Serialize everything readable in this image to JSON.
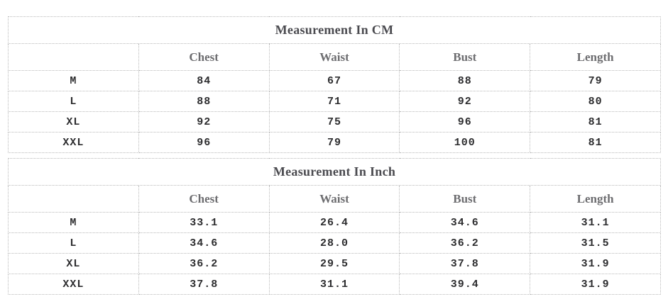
{
  "colors": {
    "background": "#ffffff",
    "border": "#b9b9b9",
    "title_text": "#4a4a4f",
    "header_text": "#6d6d70",
    "data_text": "#2d2d2f"
  },
  "tables": [
    {
      "title": "Measurement In CM",
      "columns": [
        "",
        "Chest",
        "Waist",
        "Bust",
        "Length"
      ],
      "rows": [
        {
          "size": "M",
          "values": [
            "84",
            "67",
            "88",
            "79"
          ]
        },
        {
          "size": "L",
          "values": [
            "88",
            "71",
            "92",
            "80"
          ]
        },
        {
          "size": "XL",
          "values": [
            "92",
            "75",
            "96",
            "81"
          ]
        },
        {
          "size": "XXL",
          "values": [
            "96",
            "79",
            "100",
            "81"
          ]
        }
      ]
    },
    {
      "title": "Measurement In Inch",
      "columns": [
        "",
        "Chest",
        "Waist",
        "Bust",
        "Length"
      ],
      "rows": [
        {
          "size": "M",
          "values": [
            "33.1",
            "26.4",
            "34.6",
            "31.1"
          ]
        },
        {
          "size": "L",
          "values": [
            "34.6",
            "28.0",
            "36.2",
            "31.5"
          ]
        },
        {
          "size": "XL",
          "values": [
            "36.2",
            "29.5",
            "37.8",
            "31.9"
          ]
        },
        {
          "size": "XXL",
          "values": [
            "37.8",
            "31.1",
            "39.4",
            "31.9"
          ]
        }
      ]
    }
  ]
}
